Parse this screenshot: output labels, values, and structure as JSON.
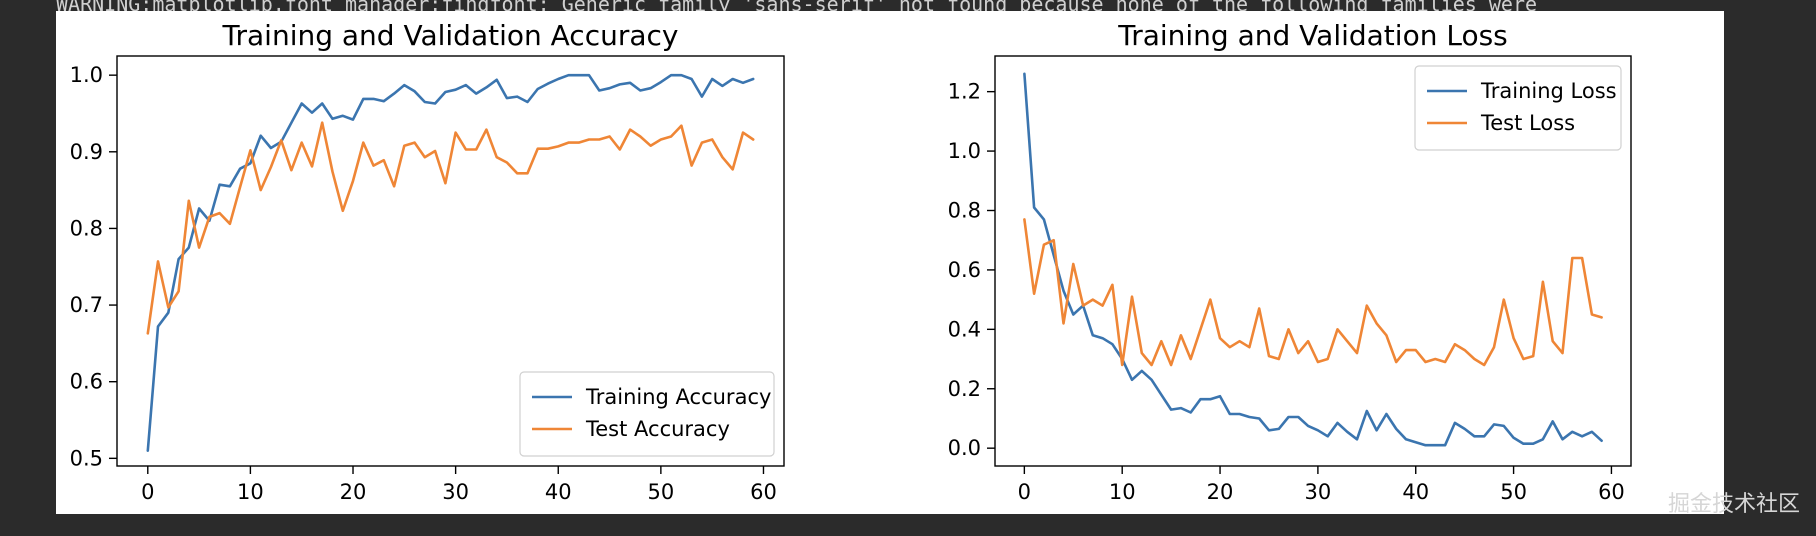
{
  "console": {
    "warning_text": "WARNING:matplotlib.font_manager:findfont: Generic family 'sans-serif' not found because none of the following families were"
  },
  "watermark": "掘金技术社区",
  "colors": {
    "training": "#3b75af",
    "test": "#ef8636",
    "axes": "#000000"
  },
  "chart_data": [
    {
      "type": "line",
      "title": "Training and Validation Accuracy",
      "xlabel": "",
      "ylabel": "",
      "xlim": [
        -3,
        62
      ],
      "ylim": [
        0.49,
        1.025
      ],
      "xticks": [
        0,
        10,
        20,
        30,
        40,
        50,
        60
      ],
      "xtick_labels": [
        "0",
        "10",
        "20",
        "30",
        "40",
        "50",
        "60"
      ],
      "yticks": [
        0.5,
        0.6,
        0.7,
        0.8,
        0.9,
        1.0
      ],
      "ytick_labels": [
        "0.5",
        "0.6",
        "0.7",
        "0.8",
        "0.9",
        "1.0"
      ],
      "legend_position": "lower-right",
      "series": [
        {
          "name": "Training Accuracy",
          "color": "#3b75af",
          "values": [
            0.51,
            0.672,
            0.69,
            0.76,
            0.775,
            0.826,
            0.81,
            0.857,
            0.855,
            0.878,
            0.885,
            0.921,
            0.905,
            0.913,
            0.938,
            0.963,
            0.951,
            0.963,
            0.943,
            0.947,
            0.942,
            0.969,
            0.969,
            0.966,
            0.976,
            0.987,
            0.979,
            0.965,
            0.963,
            0.978,
            0.981,
            0.987,
            0.976,
            0.984,
            0.994,
            0.97,
            0.972,
            0.965,
            0.982,
            0.989,
            0.995,
            1.0,
            1.0,
            1.0,
            0.98,
            0.983,
            0.988,
            0.99,
            0.98,
            0.983,
            0.991,
            1.0,
            1.0,
            0.995,
            0.972,
            0.995,
            0.986,
            0.995,
            0.99,
            0.995
          ]
        },
        {
          "name": "Test Accuracy",
          "color": "#ef8636",
          "values": [
            0.663,
            0.757,
            0.697,
            0.718,
            0.836,
            0.775,
            0.815,
            0.82,
            0.806,
            0.854,
            0.902,
            0.85,
            0.88,
            0.915,
            0.876,
            0.912,
            0.881,
            0.938,
            0.874,
            0.823,
            0.862,
            0.912,
            0.882,
            0.889,
            0.855,
            0.908,
            0.912,
            0.893,
            0.901,
            0.859,
            0.925,
            0.903,
            0.903,
            0.929,
            0.893,
            0.886,
            0.872,
            0.872,
            0.904,
            0.904,
            0.907,
            0.912,
            0.912,
            0.916,
            0.916,
            0.92,
            0.903,
            0.929,
            0.92,
            0.908,
            0.916,
            0.92,
            0.934,
            0.882,
            0.912,
            0.916,
            0.893,
            0.877,
            0.925,
            0.916
          ]
        }
      ]
    },
    {
      "type": "line",
      "title": "Training and Validation Loss",
      "xlabel": "",
      "ylabel": "",
      "xlim": [
        -3,
        62
      ],
      "ylim": [
        -0.06,
        1.32
      ],
      "xticks": [
        0,
        10,
        20,
        30,
        40,
        50,
        60
      ],
      "xtick_labels": [
        "0",
        "10",
        "20",
        "30",
        "40",
        "50",
        "60"
      ],
      "yticks": [
        0.0,
        0.2,
        0.4,
        0.6,
        0.8,
        1.0,
        1.2
      ],
      "ytick_labels": [
        "0.0",
        "0.2",
        "0.4",
        "0.6",
        "0.8",
        "1.0",
        "1.2"
      ],
      "legend_position": "top-right",
      "series": [
        {
          "name": "Training Loss",
          "color": "#3b75af",
          "values": [
            1.26,
            0.81,
            0.77,
            0.65,
            0.53,
            0.45,
            0.48,
            0.38,
            0.37,
            0.35,
            0.3,
            0.23,
            0.26,
            0.23,
            0.18,
            0.13,
            0.135,
            0.12,
            0.165,
            0.165,
            0.175,
            0.115,
            0.115,
            0.105,
            0.1,
            0.06,
            0.065,
            0.105,
            0.105,
            0.075,
            0.06,
            0.04,
            0.085,
            0.055,
            0.03,
            0.125,
            0.06,
            0.115,
            0.065,
            0.03,
            0.02,
            0.01,
            0.01,
            0.01,
            0.085,
            0.065,
            0.04,
            0.04,
            0.08,
            0.075,
            0.035,
            0.015,
            0.015,
            0.03,
            0.09,
            0.03,
            0.055,
            0.04,
            0.055,
            0.025
          ]
        },
        {
          "name": "Test Loss",
          "color": "#ef8636",
          "values": [
            0.77,
            0.52,
            0.685,
            0.7,
            0.42,
            0.62,
            0.48,
            0.5,
            0.48,
            0.55,
            0.28,
            0.51,
            0.32,
            0.28,
            0.36,
            0.28,
            0.38,
            0.3,
            0.4,
            0.5,
            0.37,
            0.34,
            0.36,
            0.34,
            0.47,
            0.31,
            0.3,
            0.4,
            0.32,
            0.36,
            0.29,
            0.3,
            0.4,
            0.36,
            0.32,
            0.48,
            0.42,
            0.38,
            0.29,
            0.33,
            0.33,
            0.29,
            0.3,
            0.29,
            0.35,
            0.33,
            0.3,
            0.28,
            0.34,
            0.5,
            0.37,
            0.3,
            0.31,
            0.56,
            0.36,
            0.32,
            0.64,
            0.64,
            0.45,
            0.44
          ]
        }
      ]
    }
  ]
}
